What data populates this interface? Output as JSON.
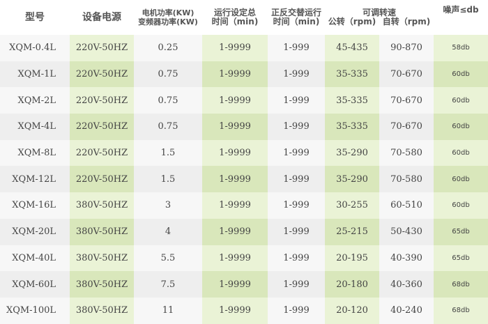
{
  "headers": {
    "model": "型号",
    "power": "设备电源",
    "motor1": "电机功率(KW)",
    "motor2": "变频器功率(KW)",
    "time1": "运行设定总",
    "time2": "时间（min)",
    "alt1": "正反交替运行",
    "alt2": "时间（min)",
    "speed": "可调转速",
    "rev": "公转（rpm)",
    "rot": "自转（rpm)",
    "noise": "噪声≤db"
  },
  "rows": [
    [
      "XQM-0.4L",
      "220V-50HZ",
      "0.25",
      "1-9999",
      "1-999",
      "45-435",
      "90-870",
      "58db"
    ],
    [
      "XQM-1L",
      "220V-50HZ",
      "0.75",
      "1-9999",
      "1-999",
      "35-335",
      "70-670",
      "60db"
    ],
    [
      "XQM-2L",
      "220V-50HZ",
      "0.75",
      "1-9999",
      "1-999",
      "35-335",
      "70-670",
      "60db"
    ],
    [
      "XQM-4L",
      "220V-50HZ",
      "0.75",
      "1-9999",
      "1-999",
      "35-335",
      "70-670",
      "60db"
    ],
    [
      "XQM-8L",
      "220V-50HZ",
      "1.5",
      "1-9999",
      "1-999",
      "35-290",
      "70-580",
      "60db"
    ],
    [
      "XQM-12L",
      "220V-50HZ",
      "1.5",
      "1-9999",
      "1-999",
      "35-290",
      "70-580",
      "60db"
    ],
    [
      "XQM-16L",
      "380V-50HZ",
      "3",
      "1-9999",
      "1-999",
      "30-255",
      "60-510",
      "60db"
    ],
    [
      "XQM-20L",
      "380V-50HZ",
      "4",
      "1-9999",
      "1-999",
      "25-215",
      "50-430",
      "65db"
    ],
    [
      "XQM-40L",
      "380V-50HZ",
      "5.5",
      "1-9999",
      "1-999",
      "20-195",
      "40-390",
      "65db"
    ],
    [
      "XQM-60L",
      "380V-50HZ",
      "7.5",
      "1-9999",
      "1-999",
      "20-180",
      "40-360",
      "68db"
    ],
    [
      "XQM-100L",
      "380V-50HZ",
      "11",
      "1-9999",
      "1-999",
      "20-120",
      "40-240",
      "68db"
    ]
  ]
}
